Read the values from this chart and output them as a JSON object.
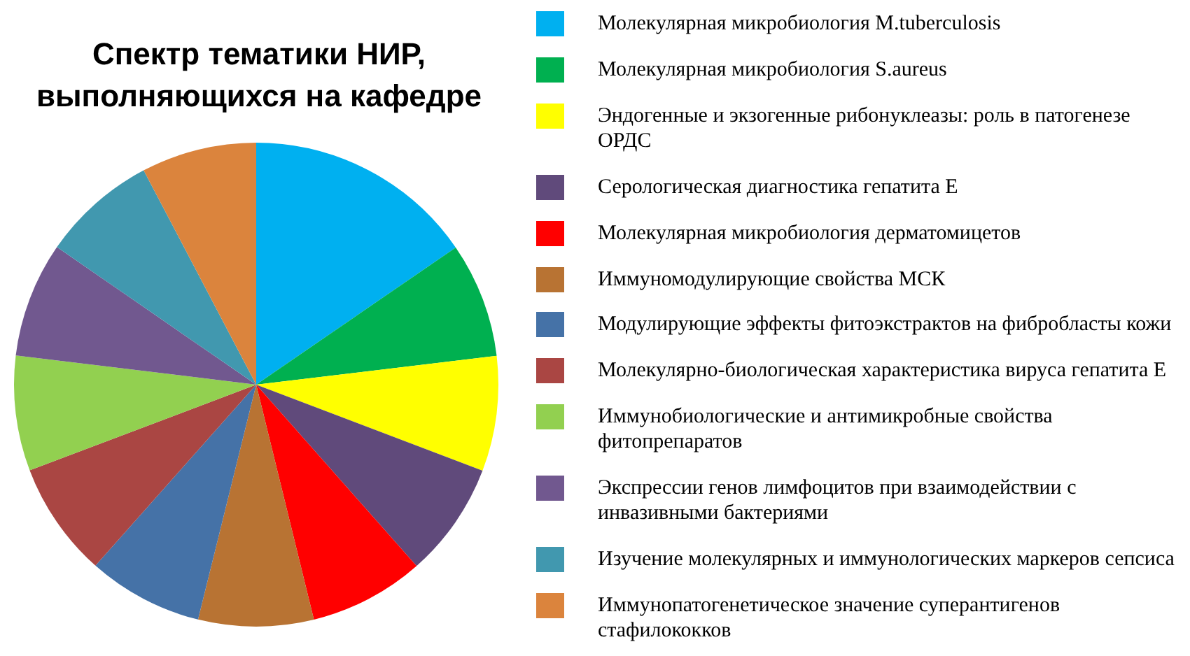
{
  "chart_data": {
    "type": "pie",
    "title": "Спектр тематики НИР, выполняющихся на кафедре",
    "categories": [
      "Молекулярная микробиология M.tuberculosis",
      "Молекулярная микробиология S.aureus",
      "Эндогенные и экзогенные рибонуклеазы: роль в патогенезе ОРДС",
      "Серологическая диагностика гепатита Е",
      "Молекулярная микробиология дерматомицетов",
      "Иммуномодулирующие свойства МСК",
      "Модулирующие эффекты фитоэкстрактов на фибробласты кожи",
      "Молекулярно-биологическая характеристика вируса гепатита Е",
      "Иммунобиологические и антимикробные свойства фитопрепаратов",
      "Экспрессии генов лимфоцитов при взаимодействии с инвазивными бактериями",
      "Изучение молекулярных и иммунологических маркеров сепсиса",
      "Иммунопатогенетическое значение суперантигенов стафилококков"
    ],
    "values": [
      15.41,
      7.69,
      7.69,
      7.69,
      7.69,
      7.69,
      7.69,
      7.69,
      7.69,
      7.69,
      7.69,
      7.69
    ],
    "colors": [
      "#00b0f0",
      "#00b050",
      "#ffff00",
      "#604a7b",
      "#ff0000",
      "#b87333",
      "#4572a7",
      "#aa4643",
      "#92d050",
      "#71588f",
      "#4198af",
      "#db843d"
    ],
    "legend": "right"
  }
}
